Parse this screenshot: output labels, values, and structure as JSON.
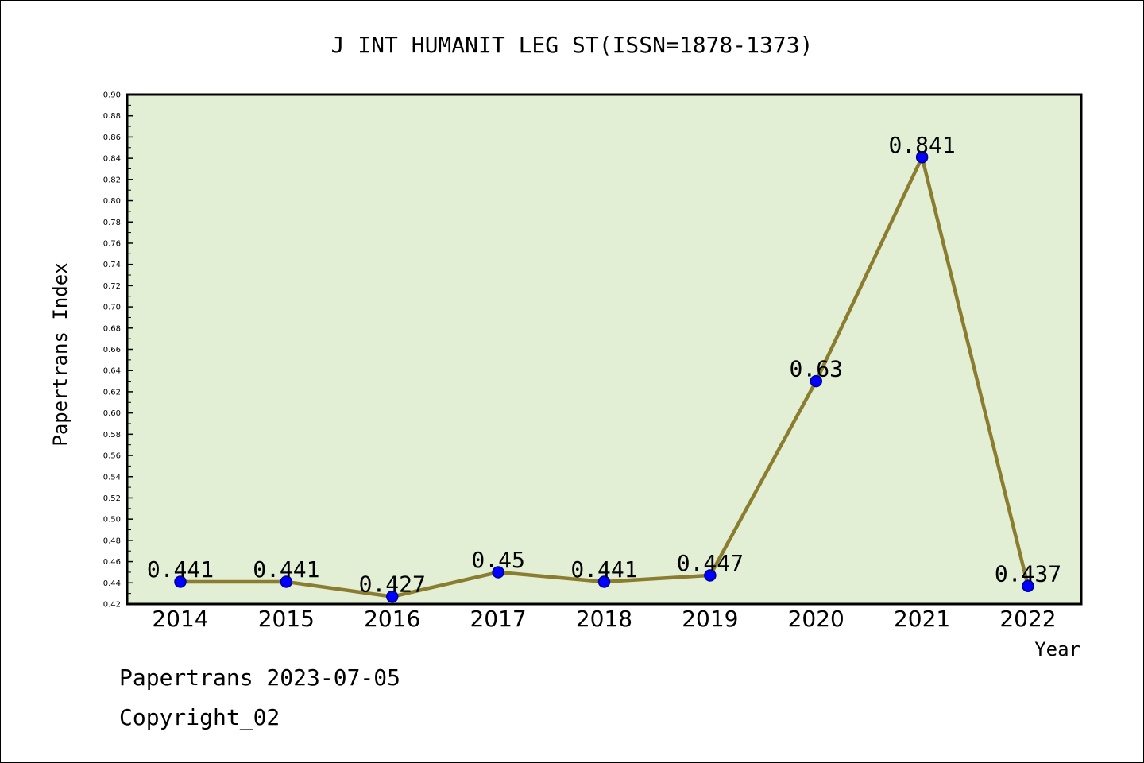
{
  "chart_data": {
    "type": "line",
    "title": "J INT HUMANIT LEG ST(ISSN=1878-1373)",
    "xlabel": "Year",
    "ylabel": "Papertrans Index",
    "categories": [
      "2014",
      "2015",
      "2016",
      "2017",
      "2018",
      "2019",
      "2020",
      "2021",
      "2022"
    ],
    "series": [
      {
        "values": [
          0.441,
          0.441,
          0.427,
          0.45,
          0.441,
          0.447,
          0.63,
          0.841,
          0.437
        ],
        "labels": [
          "0.441",
          "0.441",
          "0.427",
          "0.45",
          "0.441",
          "0.447",
          "0.63",
          "0.841",
          "0.437"
        ]
      }
    ],
    "ylim": [
      0.42,
      0.9
    ],
    "ytick_step": 0.02,
    "grid": false,
    "legend": "none",
    "colors": {
      "plot_background": "#e2efd4",
      "line": "#8b7d2f",
      "marker": "#0000ff",
      "marker_edge": "#00008b",
      "axis": "#000000"
    }
  },
  "footer": {
    "line1": "Papertrans 2023-07-05",
    "line2": "Copyright_02"
  }
}
